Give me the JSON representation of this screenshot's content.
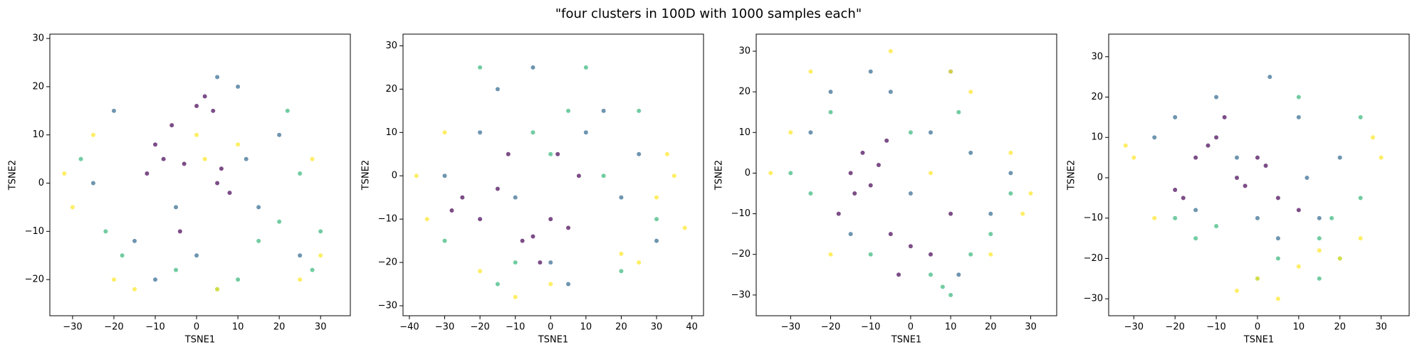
{
  "title": "\"four clusters in 100D with 1000 samples each\"",
  "chart_data": [
    {
      "type": "scatter",
      "xlabel": "TSNE1",
      "ylabel": "TSNE2",
      "xlim": [
        -35.5,
        37.2
      ],
      "ylim": [
        -27.5,
        30.9
      ],
      "xticks": [
        {
          "value": -30,
          "label": "−30"
        },
        {
          "value": -20,
          "label": "−20"
        },
        {
          "value": -10,
          "label": "−10"
        },
        0,
        10,
        20,
        30
      ],
      "yticks": [
        {
          "value": -20,
          "label": "−20"
        },
        {
          "value": -10,
          "label": "−10"
        },
        0,
        10,
        20,
        30
      ],
      "series": [
        {
          "color": "#440154",
          "x": [
            -10,
            -8,
            -6,
            -12,
            2,
            4,
            0,
            5,
            8,
            6,
            -4,
            -3
          ],
          "values": [
            8,
            5,
            12,
            2,
            18,
            15,
            16,
            0,
            -2,
            3,
            -10,
            4
          ]
        },
        {
          "color": "#31688e",
          "x": [
            -20,
            -15,
            -5,
            10,
            15,
            20,
            25,
            -25,
            0,
            5,
            -10,
            12
          ],
          "values": [
            15,
            -12,
            -5,
            20,
            -5,
            10,
            -15,
            0,
            -15,
            22,
            -20,
            5
          ]
        },
        {
          "color": "#35b779",
          "x": [
            -22,
            -18,
            20,
            25,
            28,
            15,
            -5,
            10,
            -28,
            22,
            5,
            30
          ],
          "values": [
            -10,
            -15,
            -8,
            2,
            -18,
            -12,
            -18,
            -20,
            5,
            15,
            -22,
            -10
          ]
        },
        {
          "color": "#fde725",
          "x": [
            -30,
            -25,
            -20,
            0,
            2,
            5,
            30,
            28,
            -15,
            25,
            -32,
            10
          ],
          "values": [
            -5,
            10,
            -20,
            10,
            5,
            -22,
            -15,
            5,
            -22,
            -20,
            2,
            8
          ]
        }
      ]
    },
    {
      "type": "scatter",
      "xlabel": "TSNE1",
      "ylabel": "TSNE2",
      "xlim": [
        -41.8,
        43.3
      ],
      "ylim": [
        -32.3,
        32.7
      ],
      "xticks": [
        {
          "value": -40,
          "label": "−40"
        },
        {
          "value": -30,
          "label": "−30"
        },
        {
          "value": -20,
          "label": "−20"
        },
        {
          "value": -10,
          "label": "−10"
        },
        0,
        10,
        20,
        30,
        40
      ],
      "yticks": [
        {
          "value": -30,
          "label": "−30"
        },
        {
          "value": -20,
          "label": "−20"
        },
        {
          "value": -10,
          "label": "−10"
        },
        0,
        10,
        20,
        30
      ],
      "series": [
        {
          "color": "#440154",
          "x": [
            -25,
            -20,
            -12,
            -8,
            -5,
            0,
            5,
            2,
            -15,
            -3,
            8,
            -28
          ],
          "values": [
            -5,
            -10,
            5,
            -15,
            -14,
            -10,
            -12,
            5,
            -3,
            -20,
            0,
            -8
          ]
        },
        {
          "color": "#31688e",
          "x": [
            -15,
            -5,
            10,
            20,
            25,
            0,
            -30,
            5,
            15,
            -10,
            30,
            -20
          ],
          "values": [
            20,
            25,
            10,
            -5,
            5,
            -20,
            0,
            -25,
            15,
            -5,
            -15,
            10
          ]
        },
        {
          "color": "#35b779",
          "x": [
            -20,
            -10,
            5,
            15,
            30,
            -30,
            0,
            20,
            10,
            -5,
            25,
            -15
          ],
          "values": [
            25,
            -20,
            15,
            0,
            -10,
            -15,
            5,
            -22,
            25,
            10,
            15,
            -25
          ]
        },
        {
          "color": "#fde725",
          "x": [
            -38,
            -35,
            -30,
            30,
            35,
            38,
            25,
            -10,
            0,
            20,
            -20,
            33
          ],
          "values": [
            0,
            -10,
            10,
            -5,
            0,
            -12,
            -20,
            -28,
            -25,
            -18,
            -22,
            5
          ]
        }
      ]
    },
    {
      "type": "scatter",
      "xlabel": "TSNE1",
      "ylabel": "TSNE2",
      "xlim": [
        -38.6,
        36.5
      ],
      "ylim": [
        -35.1,
        34.2
      ],
      "xticks": [
        {
          "value": -30,
          "label": "−30"
        },
        {
          "value": -20,
          "label": "−20"
        },
        {
          "value": -10,
          "label": "−10"
        },
        0,
        10,
        20,
        30
      ],
      "yticks": [
        {
          "value": -30,
          "label": "−30"
        },
        {
          "value": -20,
          "label": "−20"
        },
        {
          "value": -10,
          "label": "−10"
        },
        0,
        10,
        20,
        30
      ],
      "series": [
        {
          "color": "#440154",
          "x": [
            -15,
            -12,
            -10,
            -18,
            -8,
            -5,
            0,
            5,
            -3,
            -14,
            -6,
            10
          ],
          "values": [
            0,
            5,
            -3,
            -10,
            2,
            -15,
            -18,
            -20,
            -25,
            -5,
            8,
            -10
          ]
        },
        {
          "color": "#31688e",
          "x": [
            -20,
            -10,
            10,
            15,
            5,
            -25,
            0,
            20,
            -5,
            12,
            -15,
            25
          ],
          "values": [
            20,
            25,
            25,
            5,
            10,
            10,
            -5,
            -10,
            20,
            -25,
            -15,
            0
          ]
        },
        {
          "color": "#35b779",
          "x": [
            -25,
            5,
            10,
            15,
            20,
            0,
            -30,
            8,
            25,
            -10,
            12,
            -20
          ],
          "values": [
            -5,
            -25,
            -30,
            -20,
            -15,
            10,
            0,
            -28,
            -5,
            -20,
            15,
            15
          ]
        },
        {
          "color": "#fde725",
          "x": [
            -35,
            -30,
            10,
            15,
            25,
            30,
            20,
            -5,
            -20,
            5,
            28,
            -25
          ],
          "values": [
            0,
            10,
            25,
            20,
            5,
            -5,
            -20,
            30,
            -20,
            0,
            -10,
            25
          ]
        }
      ]
    },
    {
      "type": "scatter",
      "xlabel": "TSNE1",
      "ylabel": "TSNE2",
      "xlim": [
        -36.1,
        36.8
      ],
      "ylim": [
        -34.2,
        35.6
      ],
      "xticks": [
        {
          "value": -30,
          "label": "−30"
        },
        {
          "value": -20,
          "label": "−20"
        },
        {
          "value": -10,
          "label": "−10"
        },
        0,
        10,
        20,
        30
      ],
      "yticks": [
        {
          "value": -30,
          "label": "−30"
        },
        {
          "value": -20,
          "label": "−20"
        },
        {
          "value": -10,
          "label": "−10"
        },
        0,
        10,
        20,
        30
      ],
      "series": [
        {
          "color": "#440154",
          "x": [
            -20,
            -15,
            -10,
            -5,
            0,
            5,
            -12,
            -8,
            2,
            -18,
            10,
            -3
          ],
          "values": [
            -3,
            5,
            10,
            0,
            5,
            -5,
            8,
            15,
            3,
            -5,
            -8,
            -2
          ]
        },
        {
          "color": "#31688e",
          "x": [
            -25,
            -10,
            0,
            10,
            15,
            -20,
            5,
            20,
            -5,
            -15,
            12,
            3
          ],
          "values": [
            10,
            20,
            -10,
            15,
            -10,
            15,
            -15,
            5,
            5,
            -8,
            0,
            25
          ]
        },
        {
          "color": "#35b779",
          "x": [
            -20,
            10,
            15,
            20,
            25,
            5,
            -10,
            18,
            0,
            25,
            -15,
            15
          ],
          "values": [
            -10,
            20,
            -15,
            -20,
            -5,
            -20,
            -12,
            -10,
            -25,
            15,
            -15,
            -25
          ]
        },
        {
          "color": "#fde725",
          "x": [
            -30,
            -25,
            0,
            5,
            10,
            15,
            20,
            28,
            30,
            -5,
            -32,
            25
          ],
          "values": [
            5,
            -10,
            -25,
            -30,
            -22,
            -18,
            -20,
            10,
            5,
            -28,
            8,
            -15
          ]
        }
      ]
    }
  ]
}
